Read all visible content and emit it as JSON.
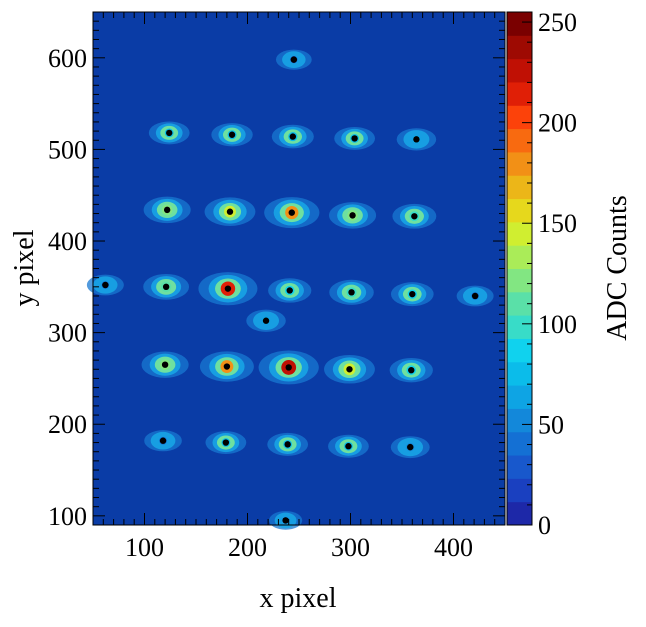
{
  "chart_data": {
    "type": "heatmap",
    "title": "",
    "xlabel": "x pixel",
    "ylabel": "y pixel",
    "xlim": [
      50,
      450
    ],
    "ylim": [
      90,
      650
    ],
    "xticks": [
      100,
      200,
      300,
      400
    ],
    "yticks": [
      100,
      200,
      300,
      400,
      500,
      600
    ],
    "colorbar": {
      "label": "ADC Counts",
      "range": [
        0,
        255
      ],
      "ticks": [
        0,
        50,
        100,
        150,
        200,
        250
      ],
      "levels": [
        "#1d28a8",
        "#1a40c0",
        "#1858cc",
        "#1470d4",
        "#1388da",
        "#0ea4e4",
        "#0bbcea",
        "#10d2ee",
        "#38dcc8",
        "#5ae0a8",
        "#82e682",
        "#aaec58",
        "#d0ee30",
        "#e6d81c",
        "#ecb618",
        "#f29016",
        "#f86a10",
        "#fc420a",
        "#e01f06",
        "#c01004",
        "#9e0a02",
        "#7a0000"
      ]
    },
    "background_color": "#0a3ca6",
    "spots": [
      {
        "x": 245,
        "y": 598,
        "peak": 30
      },
      {
        "x": 124,
        "y": 518,
        "peak": 70
      },
      {
        "x": 185,
        "y": 516,
        "peak": 75
      },
      {
        "x": 244,
        "y": 514,
        "peak": 80
      },
      {
        "x": 304,
        "y": 512,
        "peak": 70
      },
      {
        "x": 364,
        "y": 511,
        "peak": 60
      },
      {
        "x": 122,
        "y": 434,
        "peak": 120
      },
      {
        "x": 183,
        "y": 432,
        "peak": 150
      },
      {
        "x": 243,
        "y": 431,
        "peak": 185
      },
      {
        "x": 302,
        "y": 428,
        "peak": 120
      },
      {
        "x": 362,
        "y": 427,
        "peak": 95
      },
      {
        "x": 62,
        "y": 352,
        "peak": 40
      },
      {
        "x": 121,
        "y": 350,
        "peak": 110
      },
      {
        "x": 181,
        "y": 348,
        "peak": 215
      },
      {
        "x": 241,
        "y": 346,
        "peak": 90
      },
      {
        "x": 301,
        "y": 344,
        "peak": 100
      },
      {
        "x": 360,
        "y": 342,
        "peak": 85
      },
      {
        "x": 421,
        "y": 340,
        "peak": 40
      },
      {
        "x": 218,
        "y": 313,
        "peak": 60
      },
      {
        "x": 120,
        "y": 265,
        "peak": 120
      },
      {
        "x": 180,
        "y": 263,
        "peak": 175
      },
      {
        "x": 240,
        "y": 262,
        "peak": 225
      },
      {
        "x": 299,
        "y": 260,
        "peak": 150
      },
      {
        "x": 359,
        "y": 259,
        "peak": 90
      },
      {
        "x": 118,
        "y": 182,
        "peak": 45
      },
      {
        "x": 179,
        "y": 180,
        "peak": 70
      },
      {
        "x": 239,
        "y": 178,
        "peak": 70
      },
      {
        "x": 298,
        "y": 176,
        "peak": 70
      },
      {
        "x": 358,
        "y": 175,
        "peak": 55
      },
      {
        "x": 237,
        "y": 95,
        "peak": 10
      }
    ]
  }
}
